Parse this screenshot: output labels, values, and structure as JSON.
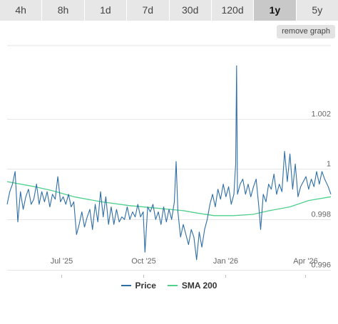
{
  "range_tabs": [
    "4h",
    "8h",
    "1d",
    "7d",
    "30d",
    "120d",
    "1y",
    "5y"
  ],
  "active_tab": "1y",
  "remove_graph_label": "remove graph",
  "colors": {
    "price": "#2e6ea6",
    "sma": "#4fd08c",
    "grid": "#e6e6e6",
    "axis_text": "#666666"
  },
  "chart_data": {
    "type": "line",
    "title": "",
    "xlabel": "",
    "ylabel": "",
    "x_range": [
      "2025-05-01",
      "2026-04-30"
    ],
    "ylim": [
      0.9958,
      1.0049
    ],
    "y_ticks": [
      {
        "value": 0.996,
        "label": "0.996"
      },
      {
        "value": 0.998,
        "label": "0.998"
      },
      {
        "value": 1.0,
        "label": "1"
      },
      {
        "value": 1.002,
        "label": "1.002"
      }
    ],
    "x_ticks": [
      {
        "date": "2025-07-01",
        "label": "Jul '25"
      },
      {
        "date": "2025-10-01",
        "label": "Oct '25"
      },
      {
        "date": "2026-01-01",
        "label": "Jan '26"
      },
      {
        "date": "2026-04-01",
        "label": "Apr '26"
      }
    ],
    "grid": "horizontal",
    "legend_position": "bottom-center",
    "series": [
      {
        "name": "Price",
        "points": [
          [
            "2025-05-01",
            0.9986
          ],
          [
            "2025-05-04",
            0.9991
          ],
          [
            "2025-05-07",
            0.9994
          ],
          [
            "2025-05-10",
            0.9999
          ],
          [
            "2025-05-13",
            0.9979
          ],
          [
            "2025-05-16",
            0.9991
          ],
          [
            "2025-05-19",
            0.9984
          ],
          [
            "2025-05-22",
            0.9989
          ],
          [
            "2025-05-25",
            0.9992
          ],
          [
            "2025-05-28",
            0.9986
          ],
          [
            "2025-05-31",
            0.9988
          ],
          [
            "2025-06-03",
            0.9994
          ],
          [
            "2025-06-06",
            0.9986
          ],
          [
            "2025-06-09",
            0.9991
          ],
          [
            "2025-06-12",
            0.9987
          ],
          [
            "2025-06-15",
            0.9991
          ],
          [
            "2025-06-18",
            0.9985
          ],
          [
            "2025-06-21",
            0.999
          ],
          [
            "2025-06-24",
            0.9988
          ],
          [
            "2025-06-27",
            0.9997
          ],
          [
            "2025-06-30",
            0.9987
          ],
          [
            "2025-07-03",
            0.9989
          ],
          [
            "2025-07-06",
            0.9986
          ],
          [
            "2025-07-09",
            0.999
          ],
          [
            "2025-07-12",
            0.9985
          ],
          [
            "2025-07-15",
            0.9987
          ],
          [
            "2025-07-18",
            0.9974
          ],
          [
            "2025-07-21",
            0.9978
          ],
          [
            "2025-07-24",
            0.9983
          ],
          [
            "2025-07-27",
            0.9977
          ],
          [
            "2025-07-30",
            0.9981
          ],
          [
            "2025-08-02",
            0.9984
          ],
          [
            "2025-08-05",
            0.9976
          ],
          [
            "2025-08-08",
            0.9986
          ],
          [
            "2025-08-11",
            0.9979
          ],
          [
            "2025-08-14",
            0.9991
          ],
          [
            "2025-08-17",
            0.9981
          ],
          [
            "2025-08-20",
            0.9989
          ],
          [
            "2025-08-23",
            0.9978
          ],
          [
            "2025-08-26",
            0.9985
          ],
          [
            "2025-08-29",
            0.9978
          ],
          [
            "2025-09-01",
            0.9984
          ],
          [
            "2025-09-04",
            0.9979
          ],
          [
            "2025-09-07",
            0.9981
          ],
          [
            "2025-09-10",
            0.998
          ],
          [
            "2025-09-13",
            0.9985
          ],
          [
            "2025-09-16",
            0.998
          ],
          [
            "2025-09-19",
            0.9983
          ],
          [
            "2025-09-22",
            0.9981
          ],
          [
            "2025-09-25",
            0.9986
          ],
          [
            "2025-09-28",
            0.9981
          ],
          [
            "2025-10-01",
            0.9983
          ],
          [
            "2025-10-03",
            0.9967
          ],
          [
            "2025-10-06",
            0.9985
          ],
          [
            "2025-10-09",
            0.9983
          ],
          [
            "2025-10-12",
            0.9986
          ],
          [
            "2025-10-15",
            0.998
          ],
          [
            "2025-10-18",
            0.9983
          ],
          [
            "2025-10-21",
            0.9978
          ],
          [
            "2025-10-24",
            0.9985
          ],
          [
            "2025-10-27",
            0.9979
          ],
          [
            "2025-10-30",
            0.9984
          ],
          [
            "2025-11-02",
            0.998
          ],
          [
            "2025-11-05",
            0.9987
          ],
          [
            "2025-11-07",
            1.0003
          ],
          [
            "2025-11-09",
            0.9983
          ],
          [
            "2025-11-12",
            0.9973
          ],
          [
            "2025-11-15",
            0.9978
          ],
          [
            "2025-11-18",
            0.9974
          ],
          [
            "2025-11-21",
            0.997
          ],
          [
            "2025-11-24",
            0.9976
          ],
          [
            "2025-11-27",
            0.9973
          ],
          [
            "2025-11-30",
            0.9964
          ],
          [
            "2025-12-03",
            0.9975
          ],
          [
            "2025-12-06",
            0.9969
          ],
          [
            "2025-12-09",
            0.9976
          ],
          [
            "2025-12-12",
            0.998
          ],
          [
            "2025-12-15",
            0.9986
          ],
          [
            "2025-12-18",
            0.999
          ],
          [
            "2025-12-21",
            0.9985
          ],
          [
            "2025-12-24",
            0.9992
          ],
          [
            "2025-12-27",
            0.9988
          ],
          [
            "2025-12-30",
            0.9994
          ],
          [
            "2026-01-02",
            0.9989
          ],
          [
            "2026-01-05",
            0.9993
          ],
          [
            "2026-01-08",
            0.9986
          ],
          [
            "2026-01-11",
            0.999
          ],
          [
            "2026-01-13",
            1.0002
          ],
          [
            "2026-01-14",
            1.0041
          ],
          [
            "2026-01-15",
            0.999
          ],
          [
            "2026-01-18",
            0.9994
          ],
          [
            "2026-01-21",
            0.9996
          ],
          [
            "2026-01-24",
            0.999
          ],
          [
            "2026-01-27",
            0.9994
          ],
          [
            "2026-01-30",
            0.9989
          ],
          [
            "2026-02-02",
            0.9993
          ],
          [
            "2026-02-05",
            0.9996
          ],
          [
            "2026-02-08",
            0.9985
          ],
          [
            "2026-02-10",
            0.9976
          ],
          [
            "2026-02-13",
            0.999
          ],
          [
            "2026-02-16",
            0.9987
          ],
          [
            "2026-02-19",
            0.9994
          ],
          [
            "2026-02-22",
            0.9992
          ],
          [
            "2026-02-25",
            0.9998
          ],
          [
            "2026-02-28",
            0.999
          ],
          [
            "2026-03-03",
            0.9994
          ],
          [
            "2026-03-06",
            0.9991
          ],
          [
            "2026-03-09",
            1.0007
          ],
          [
            "2026-03-12",
            0.9995
          ],
          [
            "2026-03-15",
            1.0006
          ],
          [
            "2026-03-18",
            0.9992
          ],
          [
            "2026-03-21",
            1.0002
          ],
          [
            "2026-03-24",
            0.9989
          ],
          [
            "2026-03-27",
            0.9993
          ],
          [
            "2026-03-30",
            0.9995
          ],
          [
            "2026-04-02",
            0.9997
          ],
          [
            "2026-04-05",
            0.9992
          ],
          [
            "2026-04-08",
            0.9996
          ],
          [
            "2026-04-11",
            0.9993
          ],
          [
            "2026-04-14",
            0.9999
          ],
          [
            "2026-04-17",
            0.9994
          ],
          [
            "2026-04-20",
            0.9999
          ],
          [
            "2026-04-23",
            0.9996
          ],
          [
            "2026-04-27",
            0.9993
          ],
          [
            "2026-04-30",
            0.999
          ]
        ]
      },
      {
        "name": "SMA 200",
        "points": [
          [
            "2025-05-01",
            0.9995
          ],
          [
            "2025-06-01",
            0.9993
          ],
          [
            "2025-06-20",
            0.99915
          ],
          [
            "2025-07-15",
            0.9989
          ],
          [
            "2025-08-15",
            0.9987
          ],
          [
            "2025-09-15",
            0.99855
          ],
          [
            "2025-10-15",
            0.99845
          ],
          [
            "2025-11-15",
            0.99835
          ],
          [
            "2025-12-01",
            0.99825
          ],
          [
            "2025-12-20",
            0.99815
          ],
          [
            "2026-01-10",
            0.99815
          ],
          [
            "2026-02-01",
            0.9982
          ],
          [
            "2026-02-20",
            0.99835
          ],
          [
            "2026-03-15",
            0.9985
          ],
          [
            "2026-04-05",
            0.99875
          ],
          [
            "2026-04-30",
            0.9989
          ]
        ]
      }
    ]
  }
}
